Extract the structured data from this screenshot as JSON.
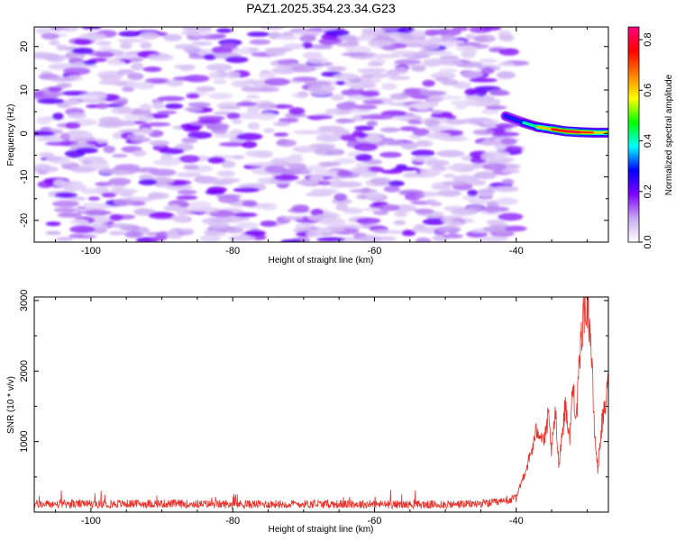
{
  "title": "PAZ1.2025.354.23.34.G23",
  "chart_data": [
    {
      "type": "heatmap",
      "title": "PAZ1.2025.354.23.34.G23",
      "xlabel": "Height of straight line (km)",
      "ylabel": "Frequency (Hz)",
      "xlim": [
        -108,
        -27
      ],
      "ylim": [
        -25,
        24.5
      ],
      "xticks": [
        -100,
        -80,
        -60,
        -40
      ],
      "yticks": [
        -20,
        -10,
        0,
        10,
        20
      ],
      "grid": false,
      "data_extent_km": [
        -107,
        -40
      ],
      "signal_ridge": {
        "x": [
          -41.5,
          -39,
          -37,
          -35,
          -33,
          -31,
          -29,
          -27
        ],
        "y": [
          4,
          2.5,
          1.5,
          1,
          0.5,
          0.3,
          0.2,
          0.2
        ],
        "amplitude": [
          0.25,
          0.35,
          0.5,
          0.72,
          0.82,
          0.8,
          0.65,
          0.55
        ]
      },
      "colorbar": {
        "label": "Normalized spectral amplitude",
        "range": [
          0.0,
          0.85
        ],
        "ticks": [
          "0.0",
          "0.2",
          "0.4",
          "0.6",
          "0.8"
        ],
        "colors": [
          "#ffffff",
          "#c8a8f0",
          "#8000ff",
          "#0000ff",
          "#00ffff",
          "#00ff00",
          "#ffff00",
          "#ff8000",
          "#ff0000",
          "#ff0080"
        ]
      }
    },
    {
      "type": "line",
      "xlabel": "Height of straight line (km)",
      "ylabel": "SNR (10 * v/v)",
      "xlim": [
        -108,
        -27
      ],
      "ylim": [
        0,
        3050
      ],
      "xticks": [
        -100,
        -80,
        -60,
        -40
      ],
      "yticks": [
        1000,
        2000,
        3000
      ],
      "series": [
        {
          "name": "SNR",
          "color": "#e8312a",
          "x": [
            -108,
            -100,
            -90,
            -80,
            -70,
            -60,
            -50,
            -45,
            -42,
            -40,
            -39,
            -38,
            -37,
            -36,
            -35.5,
            -35,
            -34.5,
            -34,
            -33.5,
            -33,
            -32.5,
            -32,
            -31.5,
            -31,
            -30.5,
            -30,
            -29.5,
            -29,
            -28.5,
            -28,
            -27.5,
            -27
          ],
          "y": [
            110,
            115,
            120,
            110,
            115,
            110,
            105,
            120,
            140,
            200,
            500,
            800,
            1200,
            1000,
            1350,
            850,
            1400,
            700,
            1150,
            1550,
            1000,
            1800,
            1350,
            2200,
            2900,
            3050,
            2500,
            1200,
            600,
            1200,
            1450,
            1850
          ]
        }
      ]
    }
  ]
}
